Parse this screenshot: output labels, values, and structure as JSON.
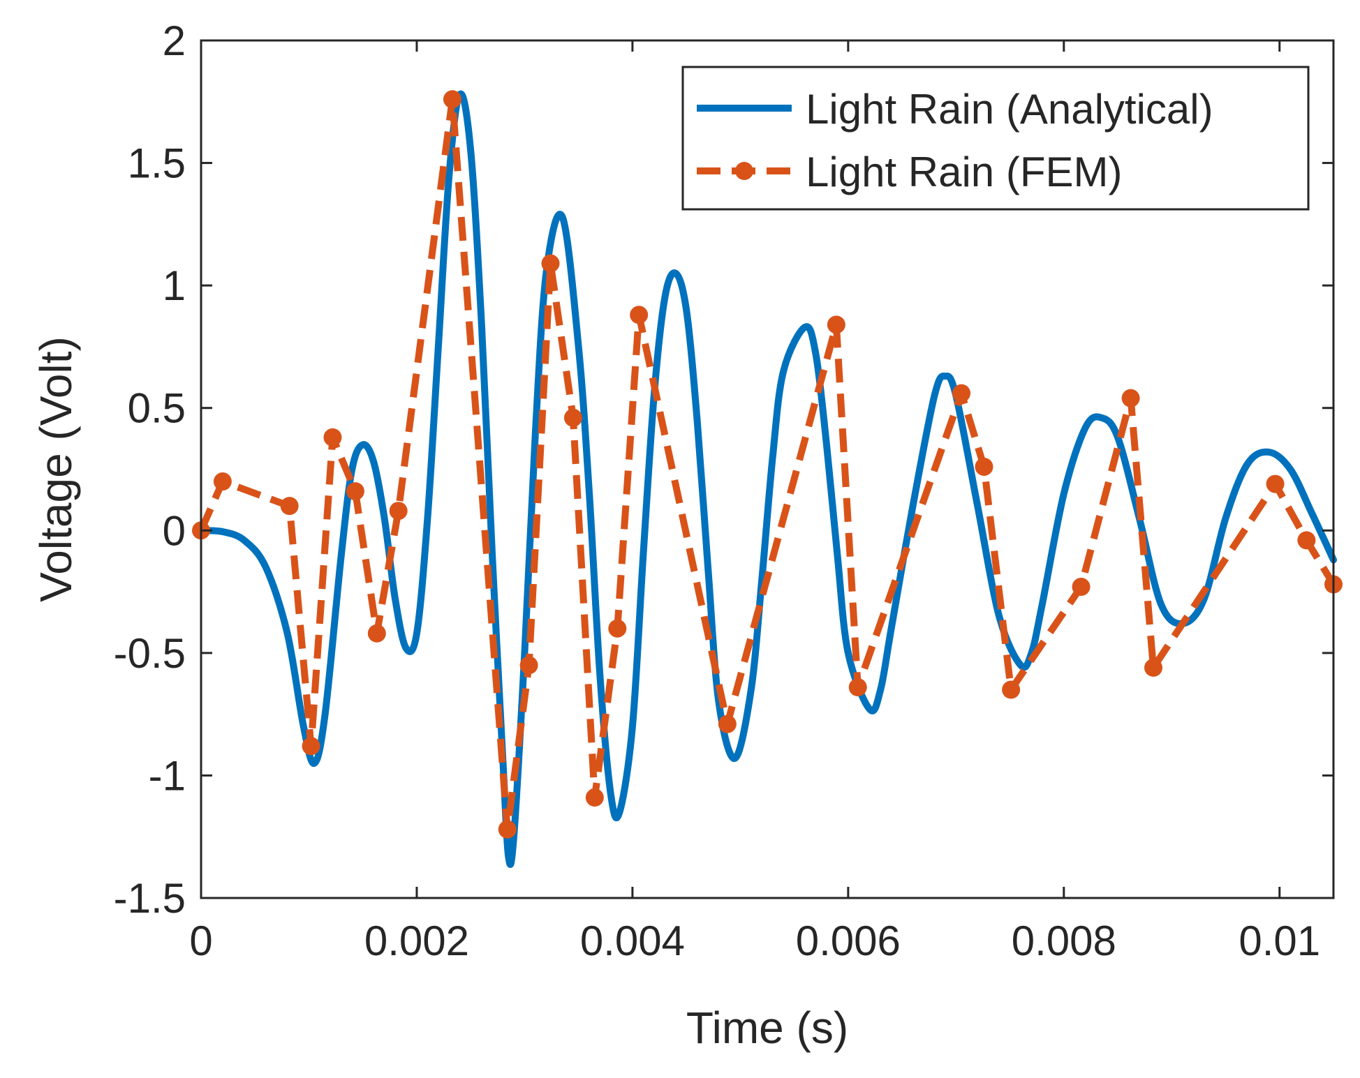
{
  "chart_data": {
    "type": "line",
    "title": "",
    "xlabel": "Time (s)",
    "ylabel": "Voltage (Volt)",
    "xlim": [
      0,
      0.0105
    ],
    "ylim": [
      -1.5,
      2
    ],
    "grid": false,
    "legend_position": "top-right",
    "x_ticks": [
      0,
      0.002,
      0.004,
      0.006,
      0.008,
      0.01
    ],
    "x_tick_labels": [
      "0",
      "0.002",
      "0.004",
      "0.006",
      "0.008",
      "0.01"
    ],
    "y_ticks": [
      -1.5,
      -1,
      -0.5,
      0,
      0.5,
      1,
      1.5,
      2
    ],
    "y_tick_labels": [
      "-1.5",
      "-1",
      "-0.5",
      "0",
      "0.5",
      "1",
      "1.5",
      "2"
    ],
    "series": [
      {
        "name": "Light Rain (Analytical)",
        "style": "solid",
        "color": "#0072BD",
        "points": [
          [
            0,
            0
          ],
          [
            0.0002,
            -0.005
          ],
          [
            0.0004,
            -0.04
          ],
          [
            0.0006,
            -0.15
          ],
          [
            0.0008,
            -0.42
          ],
          [
            0.00095,
            -0.8
          ],
          [
            0.00105,
            -0.95
          ],
          [
            0.00115,
            -0.75
          ],
          [
            0.0013,
            -0.1
          ],
          [
            0.0014,
            0.25
          ],
          [
            0.0015,
            0.35
          ],
          [
            0.0016,
            0.28
          ],
          [
            0.0017,
            0.05
          ],
          [
            0.0018,
            -0.28
          ],
          [
            0.0019,
            -0.48
          ],
          [
            0.002,
            -0.42
          ],
          [
            0.0021,
            0.05
          ],
          [
            0.0022,
            0.75
          ],
          [
            0.0023,
            1.45
          ],
          [
            0.0024,
            1.78
          ],
          [
            0.0025,
            1.55
          ],
          [
            0.0026,
            0.85
          ],
          [
            0.0027,
            -0.1
          ],
          [
            0.0028,
            -0.95
          ],
          [
            0.00285,
            -1.33
          ],
          [
            0.0029,
            -1.25
          ],
          [
            0.003,
            -0.5
          ],
          [
            0.0031,
            0.4
          ],
          [
            0.0032,
            1.05
          ],
          [
            0.00335,
            1.28
          ],
          [
            0.0035,
            0.75
          ],
          [
            0.0036,
            0.15
          ],
          [
            0.0037,
            -0.6
          ],
          [
            0.0038,
            -1.08
          ],
          [
            0.00388,
            -1.15
          ],
          [
            0.004,
            -0.8
          ],
          [
            0.0041,
            -0.1
          ],
          [
            0.0042,
            0.55
          ],
          [
            0.0043,
            0.95
          ],
          [
            0.0044,
            1.05
          ],
          [
            0.0045,
            0.9
          ],
          [
            0.0046,
            0.45
          ],
          [
            0.0047,
            -0.15
          ],
          [
            0.0048,
            -0.7
          ],
          [
            0.00495,
            -0.93
          ],
          [
            0.0051,
            -0.65
          ],
          [
            0.0052,
            -0.2
          ],
          [
            0.0053,
            0.3
          ],
          [
            0.0054,
            0.65
          ],
          [
            0.0056,
            0.83
          ],
          [
            0.0057,
            0.72
          ],
          [
            0.0058,
            0.35
          ],
          [
            0.0059,
            -0.1
          ],
          [
            0.006,
            -0.5
          ],
          [
            0.0062,
            -0.73
          ],
          [
            0.0063,
            -0.65
          ],
          [
            0.0064,
            -0.4
          ],
          [
            0.0066,
            0.1
          ],
          [
            0.0068,
            0.55
          ],
          [
            0.0069,
            0.63
          ],
          [
            0.007,
            0.55
          ],
          [
            0.0072,
            0.1
          ],
          [
            0.0074,
            -0.35
          ],
          [
            0.0076,
            -0.55
          ],
          [
            0.0077,
            -0.5
          ],
          [
            0.0078,
            -0.3
          ],
          [
            0.008,
            0.15
          ],
          [
            0.0082,
            0.42
          ],
          [
            0.00835,
            0.46
          ],
          [
            0.0085,
            0.38
          ],
          [
            0.0087,
            0.05
          ],
          [
            0.0089,
            -0.3
          ],
          [
            0.0091,
            -0.38
          ],
          [
            0.0093,
            -0.28
          ],
          [
            0.0095,
            0.05
          ],
          [
            0.0097,
            0.27
          ],
          [
            0.0099,
            0.32
          ],
          [
            0.0101,
            0.25
          ],
          [
            0.0103,
            0.07
          ],
          [
            0.0105,
            -0.12
          ]
        ]
      },
      {
        "name": "Light Rain (FEM)",
        "style": "dashed",
        "marker": "circle",
        "color": "#D95319",
        "points": [
          [
            0,
            0
          ],
          [
            0.0002,
            0.2
          ],
          [
            0.00082,
            0.1
          ],
          [
            0.00102,
            -0.88
          ],
          [
            0.00122,
            0.38
          ],
          [
            0.00143,
            0.16
          ],
          [
            0.00163,
            -0.42
          ],
          [
            0.00183,
            0.08
          ],
          [
            0.00233,
            1.76
          ],
          [
            0.00284,
            -1.22
          ],
          [
            0.00304,
            -0.55
          ],
          [
            0.00324,
            1.09
          ],
          [
            0.00345,
            0.46
          ],
          [
            0.00365,
            -1.09
          ],
          [
            0.00386,
            -0.4
          ],
          [
            0.00406,
            0.88
          ],
          [
            0.00488,
            -0.79
          ],
          [
            0.00589,
            0.84
          ],
          [
            0.00609,
            -0.64
          ],
          [
            0.00705,
            0.56
          ],
          [
            0.00726,
            0.26
          ],
          [
            0.00751,
            -0.65
          ],
          [
            0.00816,
            -0.23
          ],
          [
            0.00862,
            0.54
          ],
          [
            0.00883,
            -0.56
          ],
          [
            0.00996,
            0.19
          ],
          [
            0.01025,
            -0.04
          ],
          [
            0.0105,
            -0.22
          ]
        ]
      }
    ]
  }
}
